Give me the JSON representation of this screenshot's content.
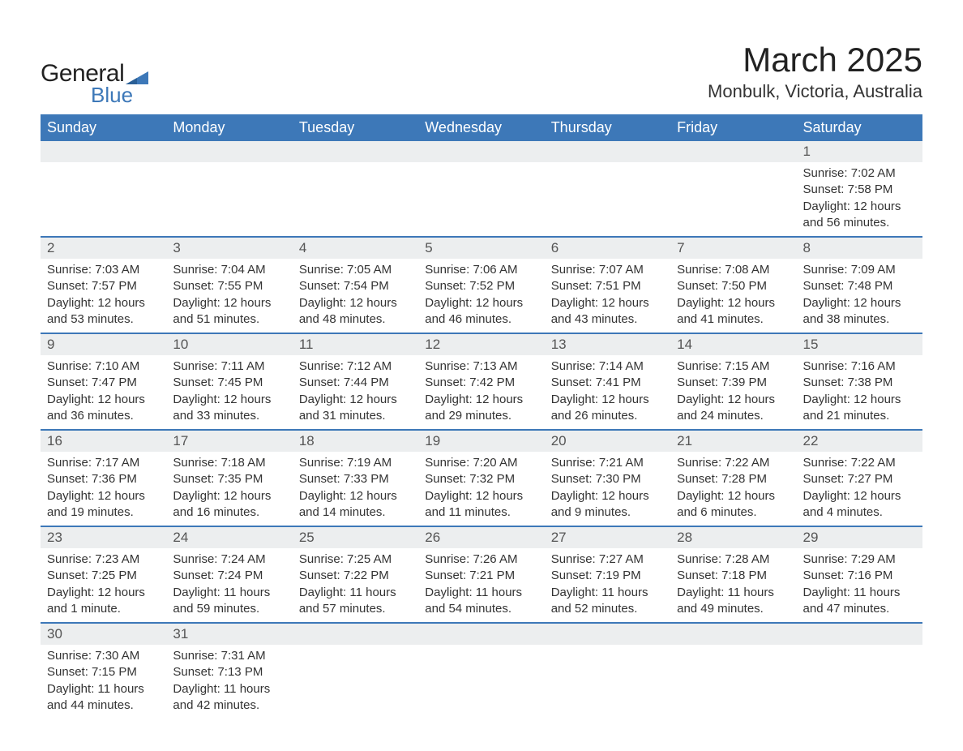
{
  "logo": {
    "text_general": "General",
    "text_blue": "Blue",
    "accent_color": "#3d78b8"
  },
  "title": "March 2025",
  "location": "Monbulk, Victoria, Australia",
  "header_bg": "#3d78b8",
  "daynum_bg": "#eceeef",
  "border_color": "#3d78b8",
  "weekdays": [
    "Sunday",
    "Monday",
    "Tuesday",
    "Wednesday",
    "Thursday",
    "Friday",
    "Saturday"
  ],
  "weeks": [
    [
      null,
      null,
      null,
      null,
      null,
      null,
      {
        "day": "1",
        "sunrise": "Sunrise: 7:02 AM",
        "sunset": "Sunset: 7:58 PM",
        "daylight1": "Daylight: 12 hours",
        "daylight2": "and 56 minutes."
      }
    ],
    [
      {
        "day": "2",
        "sunrise": "Sunrise: 7:03 AM",
        "sunset": "Sunset: 7:57 PM",
        "daylight1": "Daylight: 12 hours",
        "daylight2": "and 53 minutes."
      },
      {
        "day": "3",
        "sunrise": "Sunrise: 7:04 AM",
        "sunset": "Sunset: 7:55 PM",
        "daylight1": "Daylight: 12 hours",
        "daylight2": "and 51 minutes."
      },
      {
        "day": "4",
        "sunrise": "Sunrise: 7:05 AM",
        "sunset": "Sunset: 7:54 PM",
        "daylight1": "Daylight: 12 hours",
        "daylight2": "and 48 minutes."
      },
      {
        "day": "5",
        "sunrise": "Sunrise: 7:06 AM",
        "sunset": "Sunset: 7:52 PM",
        "daylight1": "Daylight: 12 hours",
        "daylight2": "and 46 minutes."
      },
      {
        "day": "6",
        "sunrise": "Sunrise: 7:07 AM",
        "sunset": "Sunset: 7:51 PM",
        "daylight1": "Daylight: 12 hours",
        "daylight2": "and 43 minutes."
      },
      {
        "day": "7",
        "sunrise": "Sunrise: 7:08 AM",
        "sunset": "Sunset: 7:50 PM",
        "daylight1": "Daylight: 12 hours",
        "daylight2": "and 41 minutes."
      },
      {
        "day": "8",
        "sunrise": "Sunrise: 7:09 AM",
        "sunset": "Sunset: 7:48 PM",
        "daylight1": "Daylight: 12 hours",
        "daylight2": "and 38 minutes."
      }
    ],
    [
      {
        "day": "9",
        "sunrise": "Sunrise: 7:10 AM",
        "sunset": "Sunset: 7:47 PM",
        "daylight1": "Daylight: 12 hours",
        "daylight2": "and 36 minutes."
      },
      {
        "day": "10",
        "sunrise": "Sunrise: 7:11 AM",
        "sunset": "Sunset: 7:45 PM",
        "daylight1": "Daylight: 12 hours",
        "daylight2": "and 33 minutes."
      },
      {
        "day": "11",
        "sunrise": "Sunrise: 7:12 AM",
        "sunset": "Sunset: 7:44 PM",
        "daylight1": "Daylight: 12 hours",
        "daylight2": "and 31 minutes."
      },
      {
        "day": "12",
        "sunrise": "Sunrise: 7:13 AM",
        "sunset": "Sunset: 7:42 PM",
        "daylight1": "Daylight: 12 hours",
        "daylight2": "and 29 minutes."
      },
      {
        "day": "13",
        "sunrise": "Sunrise: 7:14 AM",
        "sunset": "Sunset: 7:41 PM",
        "daylight1": "Daylight: 12 hours",
        "daylight2": "and 26 minutes."
      },
      {
        "day": "14",
        "sunrise": "Sunrise: 7:15 AM",
        "sunset": "Sunset: 7:39 PM",
        "daylight1": "Daylight: 12 hours",
        "daylight2": "and 24 minutes."
      },
      {
        "day": "15",
        "sunrise": "Sunrise: 7:16 AM",
        "sunset": "Sunset: 7:38 PM",
        "daylight1": "Daylight: 12 hours",
        "daylight2": "and 21 minutes."
      }
    ],
    [
      {
        "day": "16",
        "sunrise": "Sunrise: 7:17 AM",
        "sunset": "Sunset: 7:36 PM",
        "daylight1": "Daylight: 12 hours",
        "daylight2": "and 19 minutes."
      },
      {
        "day": "17",
        "sunrise": "Sunrise: 7:18 AM",
        "sunset": "Sunset: 7:35 PM",
        "daylight1": "Daylight: 12 hours",
        "daylight2": "and 16 minutes."
      },
      {
        "day": "18",
        "sunrise": "Sunrise: 7:19 AM",
        "sunset": "Sunset: 7:33 PM",
        "daylight1": "Daylight: 12 hours",
        "daylight2": "and 14 minutes."
      },
      {
        "day": "19",
        "sunrise": "Sunrise: 7:20 AM",
        "sunset": "Sunset: 7:32 PM",
        "daylight1": "Daylight: 12 hours",
        "daylight2": "and 11 minutes."
      },
      {
        "day": "20",
        "sunrise": "Sunrise: 7:21 AM",
        "sunset": "Sunset: 7:30 PM",
        "daylight1": "Daylight: 12 hours",
        "daylight2": "and 9 minutes."
      },
      {
        "day": "21",
        "sunrise": "Sunrise: 7:22 AM",
        "sunset": "Sunset: 7:28 PM",
        "daylight1": "Daylight: 12 hours",
        "daylight2": "and 6 minutes."
      },
      {
        "day": "22",
        "sunrise": "Sunrise: 7:22 AM",
        "sunset": "Sunset: 7:27 PM",
        "daylight1": "Daylight: 12 hours",
        "daylight2": "and 4 minutes."
      }
    ],
    [
      {
        "day": "23",
        "sunrise": "Sunrise: 7:23 AM",
        "sunset": "Sunset: 7:25 PM",
        "daylight1": "Daylight: 12 hours",
        "daylight2": "and 1 minute."
      },
      {
        "day": "24",
        "sunrise": "Sunrise: 7:24 AM",
        "sunset": "Sunset: 7:24 PM",
        "daylight1": "Daylight: 11 hours",
        "daylight2": "and 59 minutes."
      },
      {
        "day": "25",
        "sunrise": "Sunrise: 7:25 AM",
        "sunset": "Sunset: 7:22 PM",
        "daylight1": "Daylight: 11 hours",
        "daylight2": "and 57 minutes."
      },
      {
        "day": "26",
        "sunrise": "Sunrise: 7:26 AM",
        "sunset": "Sunset: 7:21 PM",
        "daylight1": "Daylight: 11 hours",
        "daylight2": "and 54 minutes."
      },
      {
        "day": "27",
        "sunrise": "Sunrise: 7:27 AM",
        "sunset": "Sunset: 7:19 PM",
        "daylight1": "Daylight: 11 hours",
        "daylight2": "and 52 minutes."
      },
      {
        "day": "28",
        "sunrise": "Sunrise: 7:28 AM",
        "sunset": "Sunset: 7:18 PM",
        "daylight1": "Daylight: 11 hours",
        "daylight2": "and 49 minutes."
      },
      {
        "day": "29",
        "sunrise": "Sunrise: 7:29 AM",
        "sunset": "Sunset: 7:16 PM",
        "daylight1": "Daylight: 11 hours",
        "daylight2": "and 47 minutes."
      }
    ],
    [
      {
        "day": "30",
        "sunrise": "Sunrise: 7:30 AM",
        "sunset": "Sunset: 7:15 PM",
        "daylight1": "Daylight: 11 hours",
        "daylight2": "and 44 minutes."
      },
      {
        "day": "31",
        "sunrise": "Sunrise: 7:31 AM",
        "sunset": "Sunset: 7:13 PM",
        "daylight1": "Daylight: 11 hours",
        "daylight2": "and 42 minutes."
      },
      null,
      null,
      null,
      null,
      null
    ]
  ]
}
